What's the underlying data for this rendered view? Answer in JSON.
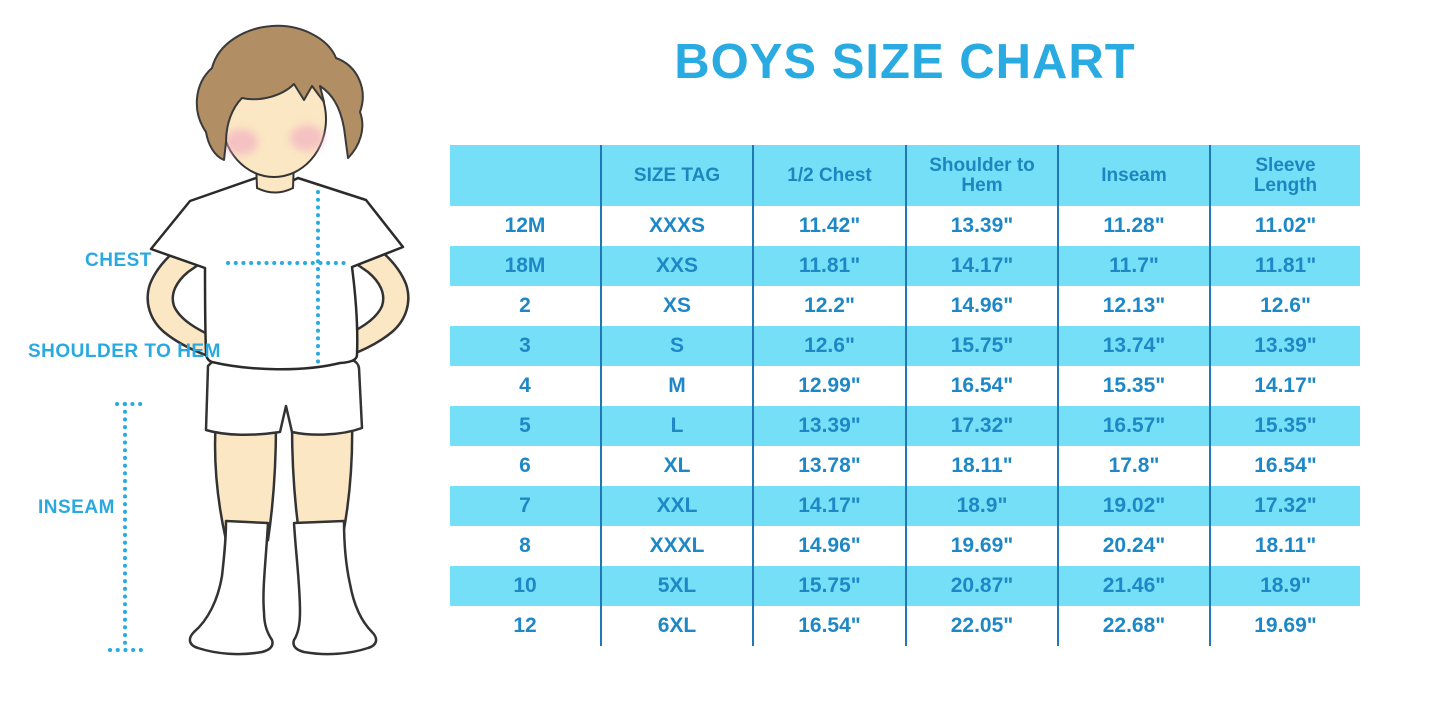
{
  "title": "BOYS SIZE CHART",
  "figure_labels": {
    "chest": "CHEST",
    "shoulder_to_hem": "SHOULDER TO HEM",
    "inseam": "INSEAM"
  },
  "chart_data": {
    "type": "table",
    "title": "BOYS SIZE CHART",
    "columns": [
      "",
      "SIZE TAG",
      "1/2 Chest",
      "Shoulder to Hem",
      "Inseam",
      "Sleeve Length"
    ],
    "rows": [
      [
        "12M",
        "XXXS",
        "11.42\"",
        "13.39\"",
        "11.28\"",
        "11.02\""
      ],
      [
        "18M",
        "XXS",
        "11.81\"",
        "14.17\"",
        "11.7\"",
        "11.81\""
      ],
      [
        "2",
        "XS",
        "12.2\"",
        "14.96\"",
        "12.13\"",
        "12.6\""
      ],
      [
        "3",
        "S",
        "12.6\"",
        "15.75\"",
        "13.74\"",
        "13.39\""
      ],
      [
        "4",
        "M",
        "12.99\"",
        "16.54\"",
        "15.35\"",
        "14.17\""
      ],
      [
        "5",
        "L",
        "13.39\"",
        "17.32\"",
        "16.57\"",
        "15.35\""
      ],
      [
        "6",
        "XL",
        "13.78\"",
        "18.11\"",
        "17.8\"",
        "16.54\""
      ],
      [
        "7",
        "XXL",
        "14.17\"",
        "18.9\"",
        "19.02\"",
        "17.32\""
      ],
      [
        "8",
        "XXXL",
        "14.96\"",
        "19.69\"",
        "20.24\"",
        "18.11\""
      ],
      [
        "10",
        "5XL",
        "15.75\"",
        "20.87\"",
        "21.46\"",
        "18.9\""
      ],
      [
        "12",
        "6XL",
        "16.54\"",
        "22.05\"",
        "22.68\"",
        "19.69\""
      ]
    ],
    "layout_hints": {
      "header_fill": "cyan",
      "row_shading": "alternating white / cyan starting white"
    }
  },
  "colors": {
    "accent_blue": "#29abe2",
    "table_fill_cyan": "#76dff8",
    "table_divider_blue": "#2277b6",
    "table_text_blue": "#1e88c6",
    "skin": "#fbe7c3",
    "hair": "#b18e63",
    "cheek": "#f2adc3"
  }
}
